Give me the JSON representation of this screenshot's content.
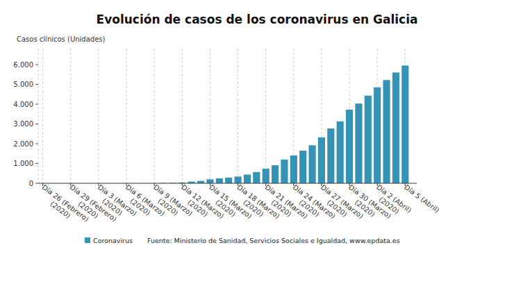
{
  "chart_data": {
    "type": "bar",
    "title": "Evolución de casos de los coronavirus en Galicia",
    "y_label": "Casos clínicos (Unidades)",
    "source": "Fuente: Ministerio de Sanidad, Servicios Sociales e Igualdad, www.epdata.es",
    "categories": [
      "Día 26 (Febrero)\n(2020)",
      null,
      null,
      "Día 29 (Febrero)\n(2020)",
      null,
      null,
      "Día 3 (Marzo)\n(2020)",
      null,
      null,
      "Día 6 (Marzo)\n(2020)",
      null,
      null,
      "Día 9 (Marzo)\n(2020)",
      null,
      null,
      "Día 12 (Marzo)\n(2020)",
      null,
      null,
      "Día 15 (Marzo)\n(2020)",
      null,
      null,
      "Día 18 (Marzo)\n(2020)",
      null,
      null,
      "Día 21 (Marzo)\n(2020)",
      null,
      null,
      "Día 24 (Marzo)\n(2020)",
      null,
      null,
      "Día 27 (Marzo)\n(2020)",
      null,
      null,
      "Día 30 (Marzo)\n(2020)",
      null,
      null,
      "Día 2 (Abril)\n(2020)",
      null,
      null,
      "Día 5 (Abril)"
    ],
    "series": [
      {
        "name": "Coronavirus",
        "color": "#3593b5",
        "values": [
          0,
          0,
          0,
          0,
          0,
          0,
          0,
          1,
          1,
          3,
          3,
          6,
          6,
          18,
          22,
          40,
          85,
          120,
          200,
          250,
          290,
          340,
          440,
          570,
          740,
          910,
          1200,
          1410,
          1650,
          1920,
          2320,
          2770,
          3130,
          3720,
          4030,
          4430,
          4850,
          5220,
          5600,
          5950
        ]
      }
    ],
    "ylim": [
      0,
      6000
    ],
    "yticks": [
      0,
      {
        "value": 1000,
        "label": "1.000"
      },
      {
        "value": 2000,
        "label": "2.000"
      },
      {
        "value": 3000,
        "label": "3.000"
      },
      {
        "value": 4000,
        "label": "4.000"
      },
      {
        "value": 5000,
        "label": "5.000"
      },
      {
        "value": 6000,
        "label": "6.000"
      }
    ],
    "grid": true,
    "legend": "bottom"
  }
}
